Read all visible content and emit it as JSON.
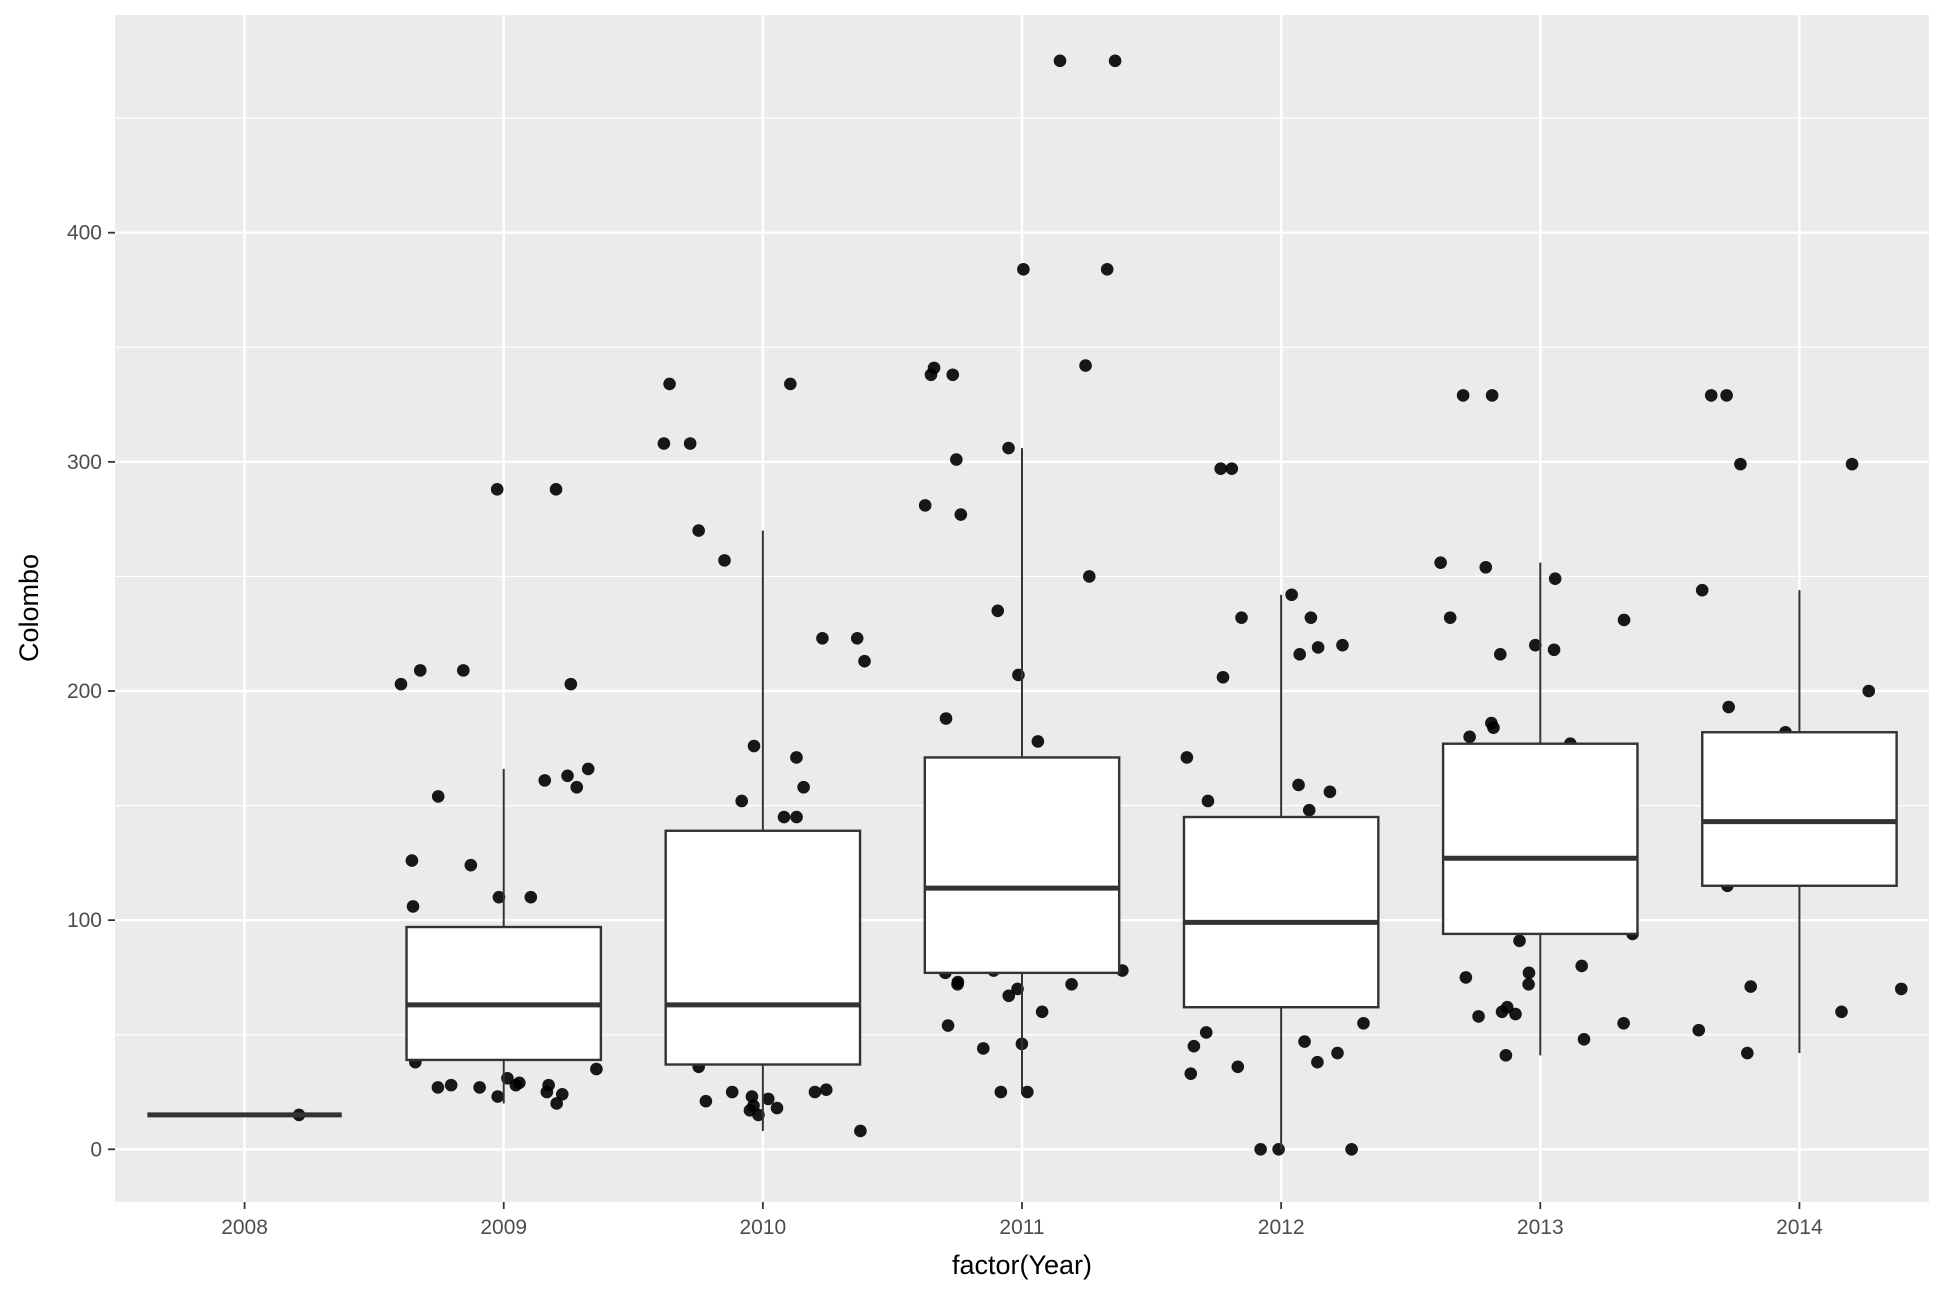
{
  "chart_data": {
    "type": "box",
    "xlabel": "factor(Year)",
    "ylabel": "Colombo",
    "categories": [
      "2008",
      "2009",
      "2010",
      "2011",
      "2012",
      "2013",
      "2014"
    ],
    "ylim": [
      -23,
      495
    ],
    "yticks": [
      0,
      100,
      200,
      300,
      400
    ],
    "grid": true,
    "colors": {
      "panel": "#ebebeb",
      "grid": "#ffffff",
      "box_fill": "#ffffff",
      "box_line": "#333333",
      "point": "#000000",
      "text": "#4d4d4d"
    },
    "boxes": [
      {
        "category": "2008",
        "lower_whisker": 15,
        "q1": 15,
        "median": 15,
        "q3": 15,
        "upper_whisker": 15
      },
      {
        "category": "2009",
        "lower_whisker": 20,
        "q1": 39,
        "median": 63,
        "q3": 97,
        "upper_whisker": 166
      },
      {
        "category": "2010",
        "lower_whisker": 8,
        "q1": 37,
        "median": 63,
        "q3": 139,
        "upper_whisker": 270
      },
      {
        "category": "2011",
        "lower_whisker": 25,
        "q1": 77,
        "median": 114,
        "q3": 171,
        "upper_whisker": 306
      },
      {
        "category": "2012",
        "lower_whisker": 0,
        "q1": 62,
        "median": 99,
        "q3": 145,
        "upper_whisker": 242
      },
      {
        "category": "2013",
        "lower_whisker": 41,
        "q1": 94,
        "median": 127,
        "q3": 177,
        "upper_whisker": 256
      },
      {
        "category": "2014",
        "lower_whisker": 42,
        "q1": 115,
        "median": 143,
        "q3": 182,
        "upper_whisker": 244
      }
    ],
    "points": [
      {
        "category": "2008",
        "y": [
          15
        ]
      },
      {
        "category": "2009",
        "y": [
          161,
          163,
          158,
          166,
          126,
          154,
          25,
          23,
          27,
          28,
          29,
          20,
          288,
          288,
          209,
          203,
          203,
          209,
          110,
          110,
          106,
          124,
          38,
          35,
          28,
          24,
          31,
          28,
          27
        ]
      },
      {
        "category": "2010",
        "y": [
          334,
          334,
          308,
          308,
          270,
          223,
          213,
          223,
          158,
          171,
          145,
          257,
          176,
          152,
          145,
          136,
          86,
          25,
          23,
          21,
          8,
          19,
          18,
          25,
          15,
          22,
          17,
          26,
          36
        ]
      },
      {
        "category": "2011",
        "y": [
          475,
          475,
          384,
          384,
          341,
          338,
          338,
          306,
          342,
          301,
          281,
          277,
          250,
          235,
          207,
          188,
          178,
          116,
          99,
          78,
          78,
          77,
          72,
          60,
          46,
          44,
          73,
          70,
          72,
          67,
          54,
          25,
          25
        ]
      },
      {
        "category": "2012",
        "y": [
          297,
          297,
          242,
          232,
          232,
          220,
          219,
          216,
          206,
          171,
          159,
          156,
          152,
          148,
          137,
          105,
          99,
          55,
          51,
          47,
          45,
          42,
          38,
          36,
          33,
          0,
          0,
          0
        ]
      },
      {
        "category": "2013",
        "y": [
          329,
          329,
          256,
          254,
          249,
          232,
          231,
          220,
          218,
          216,
          186,
          184,
          180,
          177,
          113,
          94,
          91,
          80,
          77,
          75,
          72,
          62,
          60,
          59,
          58,
          55,
          48,
          41
        ]
      },
      {
        "category": "2014",
        "y": [
          329,
          329,
          299,
          299,
          244,
          200,
          193,
          182,
          115,
          71,
          70,
          60,
          52,
          42
        ]
      }
    ]
  }
}
